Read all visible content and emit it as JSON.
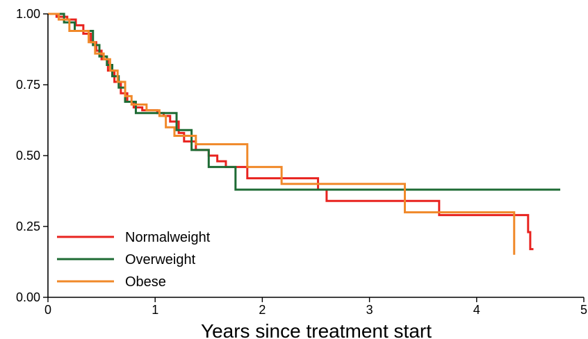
{
  "chart_data": {
    "type": "line",
    "title": "",
    "xlabel": "Years since treatment start",
    "ylabel": "",
    "xlim": [
      0,
      5
    ],
    "ylim": [
      0,
      1
    ],
    "x_ticks": [
      "0",
      "1",
      "2",
      "3",
      "4",
      "5"
    ],
    "y_ticks": [
      "0.00",
      "0.25",
      "0.50",
      "0.75",
      "1.00"
    ],
    "grid": false,
    "legend_position": "bottom-left",
    "step": true,
    "series": [
      {
        "name": "Normalweight",
        "color": "#e8231f",
        "x": [
          0,
          0.08,
          0.18,
          0.26,
          0.33,
          0.4,
          0.45,
          0.5,
          0.56,
          0.62,
          0.68,
          0.74,
          0.8,
          0.88,
          1.02,
          1.08,
          1.14,
          1.22,
          1.27,
          1.38,
          1.5,
          1.58,
          1.66,
          1.86,
          2.52,
          2.6,
          3.65,
          4.48,
          4.5,
          4.53
        ],
        "y": [
          1.0,
          0.99,
          0.98,
          0.96,
          0.93,
          0.9,
          0.87,
          0.84,
          0.8,
          0.76,
          0.72,
          0.69,
          0.67,
          0.66,
          0.65,
          0.64,
          0.62,
          0.58,
          0.55,
          0.52,
          0.5,
          0.48,
          0.46,
          0.42,
          0.38,
          0.34,
          0.29,
          0.23,
          0.17,
          0.17
        ]
      },
      {
        "name": "Overweight",
        "color": "#1e6b34",
        "x": [
          0,
          0.15,
          0.25,
          0.42,
          0.48,
          0.55,
          0.6,
          0.66,
          0.72,
          0.82,
          1.2,
          1.34,
          1.5,
          1.75,
          4.78
        ],
        "y": [
          1.0,
          0.97,
          0.94,
          0.89,
          0.85,
          0.82,
          0.78,
          0.74,
          0.69,
          0.65,
          0.59,
          0.52,
          0.46,
          0.38,
          0.38
        ]
      },
      {
        "name": "Obese",
        "color": "#f0892a",
        "x": [
          0,
          0.1,
          0.2,
          0.38,
          0.44,
          0.52,
          0.58,
          0.65,
          0.72,
          0.78,
          0.92,
          1.04,
          1.1,
          1.18,
          1.38,
          1.86,
          2.18,
          3.33,
          4.35
        ],
        "y": [
          1.0,
          0.98,
          0.94,
          0.9,
          0.86,
          0.84,
          0.8,
          0.76,
          0.71,
          0.68,
          0.66,
          0.64,
          0.6,
          0.57,
          0.54,
          0.46,
          0.4,
          0.3,
          0.15
        ]
      }
    ]
  }
}
